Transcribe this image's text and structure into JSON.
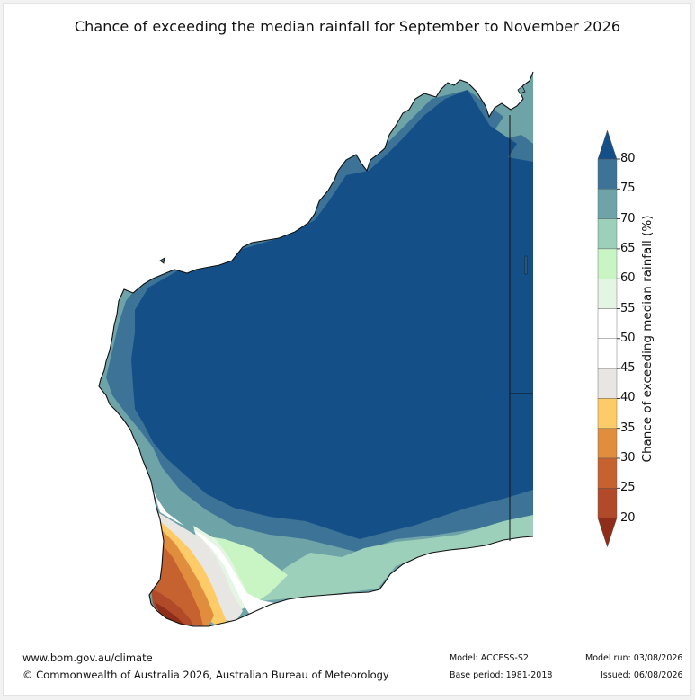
{
  "title": "Chance of exceeding the median rainfall for September to November 2026",
  "colorbar": {
    "label": "Chance of exceeding median rainfall (%)",
    "ticks": [
      "80",
      "75",
      "70",
      "65",
      "60",
      "55",
      "50",
      "45",
      "40",
      "35",
      "30",
      "25",
      "20"
    ],
    "bands": [
      {
        "range": "<20",
        "color": "#8e2d19"
      },
      {
        "range": "20-25",
        "color": "#b04a28"
      },
      {
        "range": "25-30",
        "color": "#c6622f"
      },
      {
        "range": "30-35",
        "color": "#e08e3e"
      },
      {
        "range": "35-40",
        "color": "#fdcc68"
      },
      {
        "range": "40-45",
        "color": "#e8e6e3"
      },
      {
        "range": "45-50",
        "color": "#ffffff"
      },
      {
        "range": "50-55",
        "color": "#ffffff"
      },
      {
        "range": "55-60",
        "color": "#e5f5e3"
      },
      {
        "range": "60-65",
        "color": "#c9f5c5"
      },
      {
        "range": "65-70",
        "color": "#9dd0bb"
      },
      {
        "range": "70-75",
        "color": "#6ea3a8"
      },
      {
        "range": "75-80",
        "color": "#3c7396"
      },
      {
        "range": ">80",
        "color": "#154f88"
      }
    ]
  },
  "footer": {
    "website": "www.bom.gov.au/climate",
    "copyright": "© Commonwealth of Australia 2026, Australian Bureau of Meteorology",
    "model": "Model: ACCESS-S2",
    "base_period": "Base period: 1981-2018",
    "model_run": "Model run: 03/08/2026",
    "issued": "Issued: 06/08/2026"
  }
}
